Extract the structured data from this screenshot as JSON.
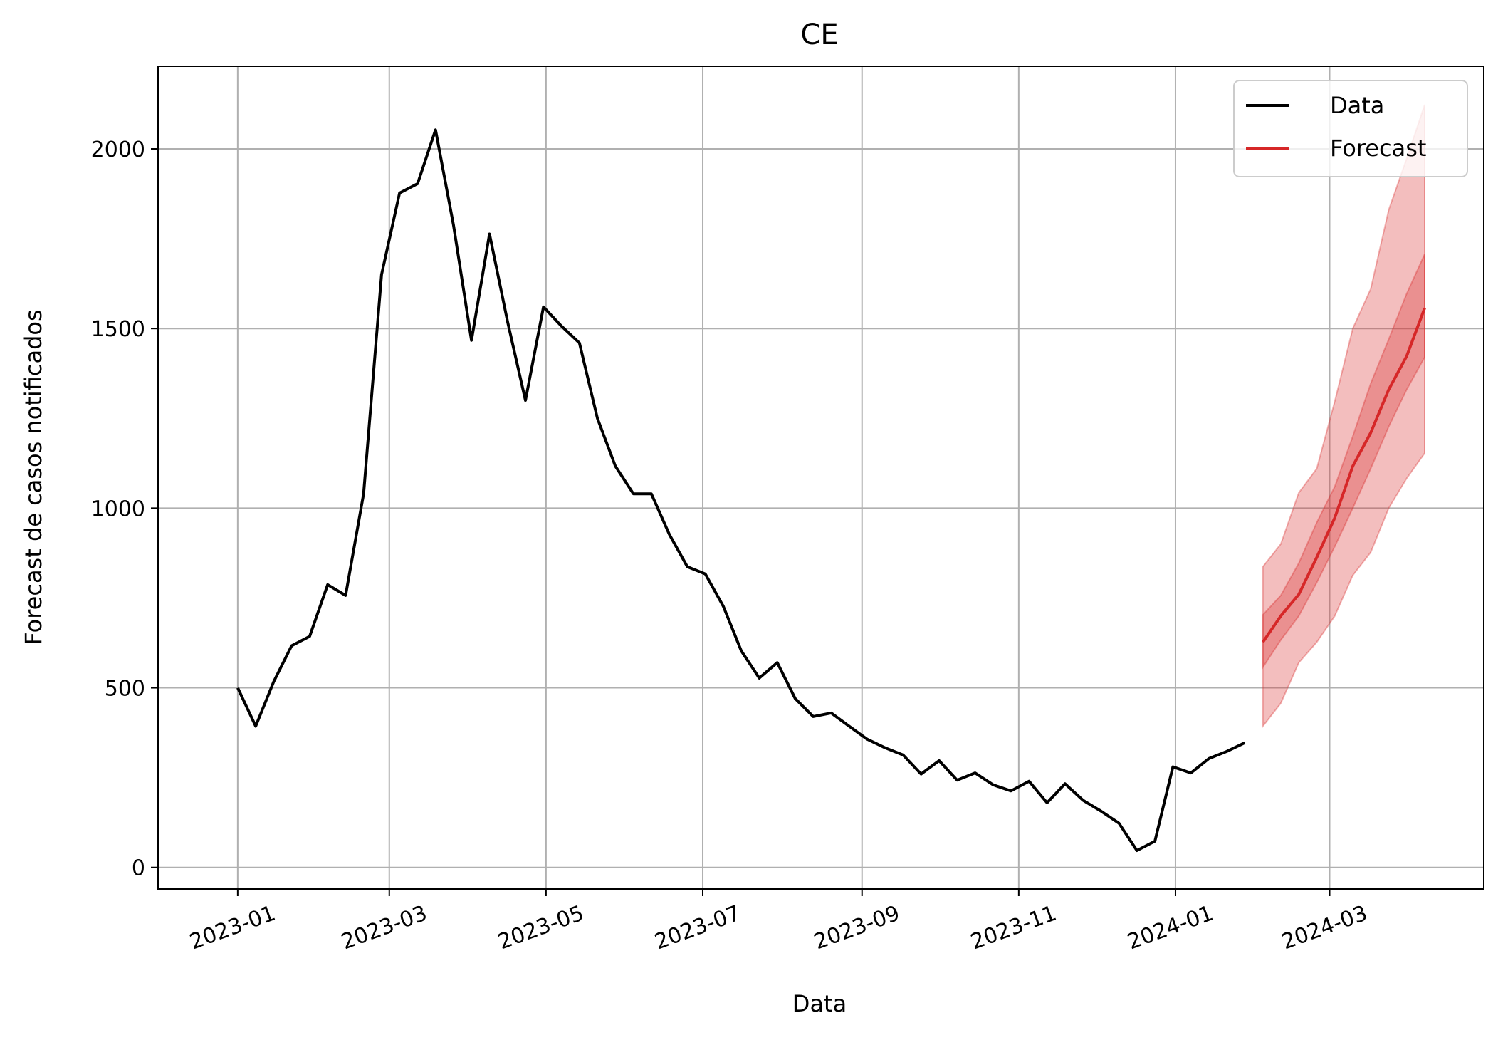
{
  "chart_data": {
    "type": "line",
    "title": "CE",
    "xlabel": "Data",
    "ylabel": "Forecast de casos notificados",
    "grid": true,
    "legend_position": "top-right",
    "xlim": [
      "2022-12-01",
      "2024-04-30"
    ],
    "ylim": [
      -60,
      2230
    ],
    "x_ticks": [
      "2023-01",
      "2023-03",
      "2023-05",
      "2023-07",
      "2023-09",
      "2023-11",
      "2024-01",
      "2024-03"
    ],
    "y_ticks": [
      0,
      500,
      1000,
      1500,
      2000
    ],
    "legend": [
      {
        "label": "Data",
        "color": "#000000"
      },
      {
        "label": "Forecast",
        "color": "#d62728"
      }
    ],
    "series": [
      {
        "name": "Data",
        "color": "#000000",
        "x": [
          "2023-01-01",
          "2023-01-08",
          "2023-01-15",
          "2023-01-22",
          "2023-01-29",
          "2023-02-05",
          "2023-02-12",
          "2023-02-19",
          "2023-02-26",
          "2023-03-05",
          "2023-03-12",
          "2023-03-19",
          "2023-03-26",
          "2023-04-02",
          "2023-04-09",
          "2023-04-16",
          "2023-04-23",
          "2023-04-30",
          "2023-05-07",
          "2023-05-14",
          "2023-05-21",
          "2023-05-28",
          "2023-06-04",
          "2023-06-11",
          "2023-06-18",
          "2023-06-25",
          "2023-07-02",
          "2023-07-09",
          "2023-07-16",
          "2023-07-23",
          "2023-07-30",
          "2023-08-06",
          "2023-08-13",
          "2023-08-20",
          "2023-08-27",
          "2023-09-03",
          "2023-09-10",
          "2023-09-17",
          "2023-09-24",
          "2023-10-01",
          "2023-10-08",
          "2023-10-15",
          "2023-10-22",
          "2023-10-29",
          "2023-11-05",
          "2023-11-12",
          "2023-11-19",
          "2023-11-26",
          "2023-12-03",
          "2023-12-10",
          "2023-12-17",
          "2023-12-24",
          "2023-12-31",
          "2024-01-07",
          "2024-01-14",
          "2024-01-21",
          "2024-01-28"
        ],
        "y": [
          500,
          393,
          517,
          617,
          643,
          787,
          757,
          1040,
          1650,
          1877,
          1903,
          2053,
          1787,
          1467,
          1763,
          1520,
          1300,
          1560,
          1507,
          1460,
          1250,
          1117,
          1040,
          1040,
          927,
          837,
          817,
          727,
          603,
          527,
          570,
          470,
          420,
          430,
          393,
          357,
          333,
          313,
          260,
          297,
          243,
          263,
          230,
          213,
          240,
          180,
          233,
          187,
          157,
          123,
          47,
          73,
          280,
          263,
          303,
          323,
          347
        ]
      },
      {
        "name": "Forecast",
        "color": "#d62728",
        "x": [
          "2024-02-04",
          "2024-02-11",
          "2024-02-18",
          "2024-02-25",
          "2024-03-03",
          "2024-03-10",
          "2024-03-17",
          "2024-03-24",
          "2024-03-31",
          "2024-04-07"
        ],
        "y": [
          627,
          700,
          760,
          863,
          973,
          1117,
          1210,
          1330,
          1423,
          1557
        ],
        "band_inner_low": [
          557,
          633,
          700,
          793,
          893,
          1000,
          1110,
          1227,
          1330,
          1420
        ],
        "band_inner_high": [
          703,
          757,
          847,
          960,
          1060,
          1200,
          1347,
          1470,
          1597,
          1707
        ],
        "band_outer_low": [
          393,
          457,
          570,
          627,
          700,
          813,
          877,
          1000,
          1083,
          1153
        ],
        "band_outer_high": [
          837,
          900,
          1043,
          1110,
          1297,
          1500,
          1610,
          1830,
          1973,
          2123
        ]
      }
    ]
  }
}
